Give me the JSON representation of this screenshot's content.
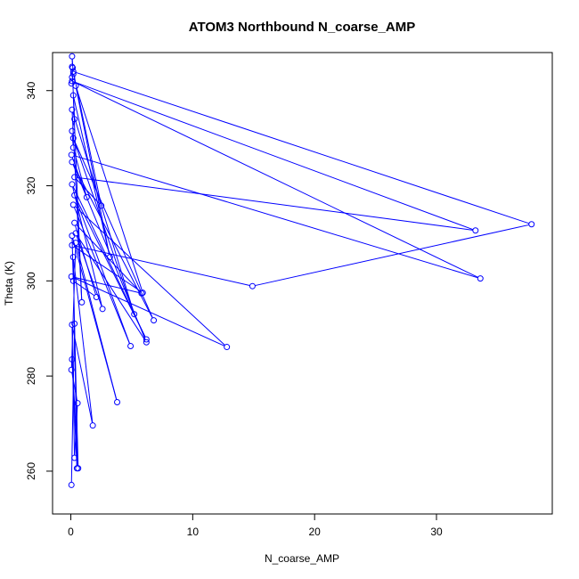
{
  "chart_data": {
    "type": "line",
    "title": "ATOM3 Northbound N_coarse_AMP",
    "xlabel": "N_coarse_AMP",
    "ylabel": "Theta (K)",
    "xlim": [
      -1.5,
      39.5
    ],
    "ylim": [
      251,
      348
    ],
    "xticks": [
      0,
      10,
      20,
      30
    ],
    "yticks": [
      260,
      280,
      300,
      320,
      340
    ],
    "grid": false,
    "legend": "none",
    "series": [
      {
        "color": "#0000ff",
        "marker": "open-circle",
        "x": [
          0.05,
          0.3,
          0.6,
          0.1,
          0.5,
          0.2,
          1.8,
          0.1,
          0.3,
          0.55,
          0.05,
          0.4,
          3.8,
          0.1,
          0.2,
          2.1,
          0.3,
          5.8,
          0.05,
          12.8,
          0.2,
          4.9,
          0.3,
          6.2,
          0.1,
          2.6,
          0.4,
          6.2,
          0.1,
          6.8,
          0.2,
          5.2,
          0.1,
          0.9,
          0.2,
          3.2,
          0.4,
          5.9,
          0.1,
          14.9,
          37.8,
          0.2,
          2.5,
          0.3,
          33.2,
          0.1,
          33.6,
          0.05,
          1.3,
          0.2,
          0.1,
          0.3,
          0.1,
          0.2,
          0.1,
          0.15,
          0.1,
          0.05
        ],
        "y": [
          257.1,
          291.0,
          260.6,
          283.5,
          260.6,
          305.0,
          269.6,
          290.8,
          262.8,
          274.3,
          281.3,
          308.0,
          274.5,
          309.5,
          300.0,
          296.6,
          312.2,
          297.4,
          300.9,
          286.1,
          316.0,
          286.3,
          318.0,
          287.7,
          320.3,
          294.1,
          310.0,
          287.1,
          325.0,
          291.7,
          330.0,
          293.0,
          336.0,
          295.5,
          339.0,
          305.0,
          341.0,
          297.5,
          307.5,
          298.9,
          311.9,
          344.0,
          315.8,
          321.8,
          310.6,
          342.0,
          300.5,
          326.5,
          317.6,
          328.0,
          331.5,
          334.0,
          345.0,
          343.5,
          347.2,
          344.8,
          342.8,
          341.5
        ]
      }
    ]
  }
}
